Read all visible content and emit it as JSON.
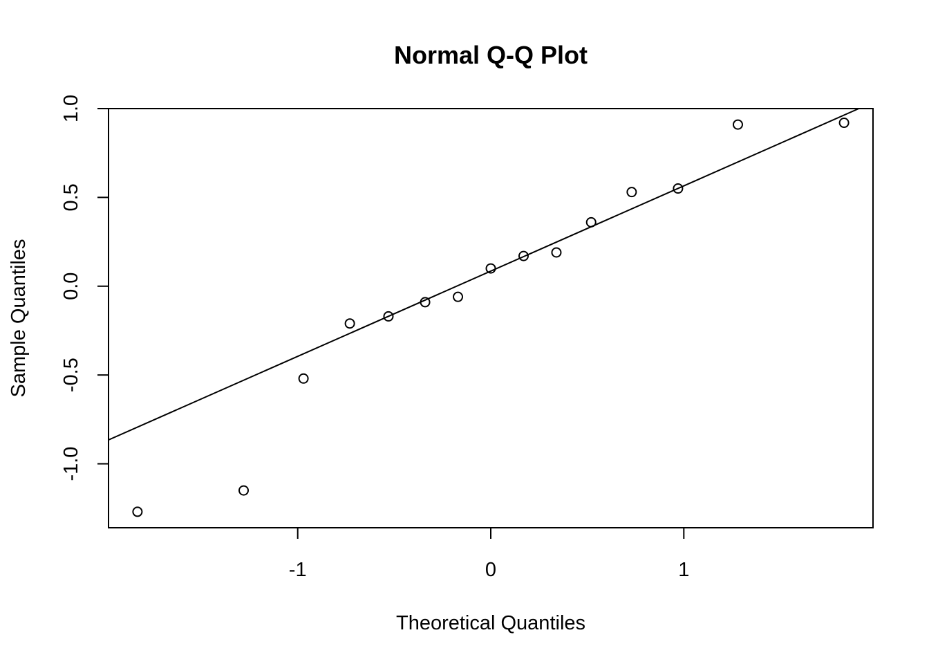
{
  "chart_data": {
    "type": "scatter",
    "title": "Normal Q-Q Plot",
    "xlabel": "Theoretical Quantiles",
    "ylabel": "Sample Quantiles",
    "xlim": [
      -1.98,
      1.98
    ],
    "ylim": [
      -1.36,
      1.0
    ],
    "x_ticks": [
      -1,
      0,
      1
    ],
    "x_tick_labels": [
      "-1",
      "0",
      "1"
    ],
    "y_ticks": [
      -1.0,
      -0.5,
      0.0,
      0.5,
      1.0
    ],
    "y_tick_labels": [
      "-1.0",
      "-0.5",
      "0.0",
      "0.5",
      "1.0"
    ],
    "grid": false,
    "legend": "none",
    "points": {
      "x": [
        -1.83,
        -1.28,
        -0.97,
        -0.73,
        -0.53,
        -0.34,
        -0.17,
        0.0,
        0.17,
        0.34,
        0.52,
        0.73,
        0.97,
        1.28,
        1.83
      ],
      "y": [
        -1.27,
        -1.15,
        -0.52,
        -0.21,
        -0.17,
        -0.09,
        -0.06,
        0.1,
        0.17,
        0.19,
        0.36,
        0.53,
        0.55,
        0.91,
        0.92
      ]
    },
    "reference_line": {
      "intercept": 0.085,
      "slope": 0.48
    }
  }
}
